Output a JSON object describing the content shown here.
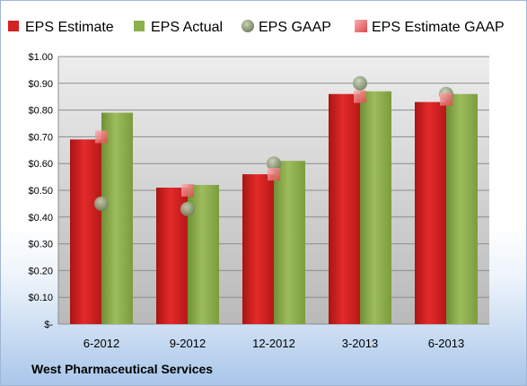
{
  "chart_data": {
    "type": "bar",
    "categories": [
      "6-2012",
      "9-2012",
      "12-2012",
      "3-2013",
      "6-2013"
    ],
    "series": [
      {
        "name": "EPS Estimate",
        "kind": "bar",
        "color": "#d42121",
        "values": [
          0.69,
          0.51,
          0.56,
          0.86,
          0.83
        ]
      },
      {
        "name": "EPS Actual",
        "kind": "bar",
        "color": "#8db04c",
        "values": [
          0.79,
          0.52,
          0.61,
          0.87,
          0.86
        ]
      },
      {
        "name": "EPS GAAP",
        "kind": "marker-circle",
        "color": "#8f9d78",
        "values": [
          0.45,
          0.43,
          0.6,
          0.9,
          0.86
        ]
      },
      {
        "name": "EPS Estimate GAAP",
        "kind": "marker-square",
        "color": "#f07d80",
        "values": [
          0.7,
          0.5,
          0.56,
          0.85,
          0.84
        ]
      }
    ],
    "yticks": [
      "$-",
      "$0.10",
      "$0.20",
      "$0.30",
      "$0.40",
      "$0.50",
      "$0.60",
      "$0.70",
      "$0.80",
      "$0.90",
      "$1.00"
    ],
    "ylim": [
      0,
      1.0
    ],
    "grid": true,
    "legend_position": "top"
  },
  "footer": {
    "company": "West Pharmaceutical Services"
  }
}
